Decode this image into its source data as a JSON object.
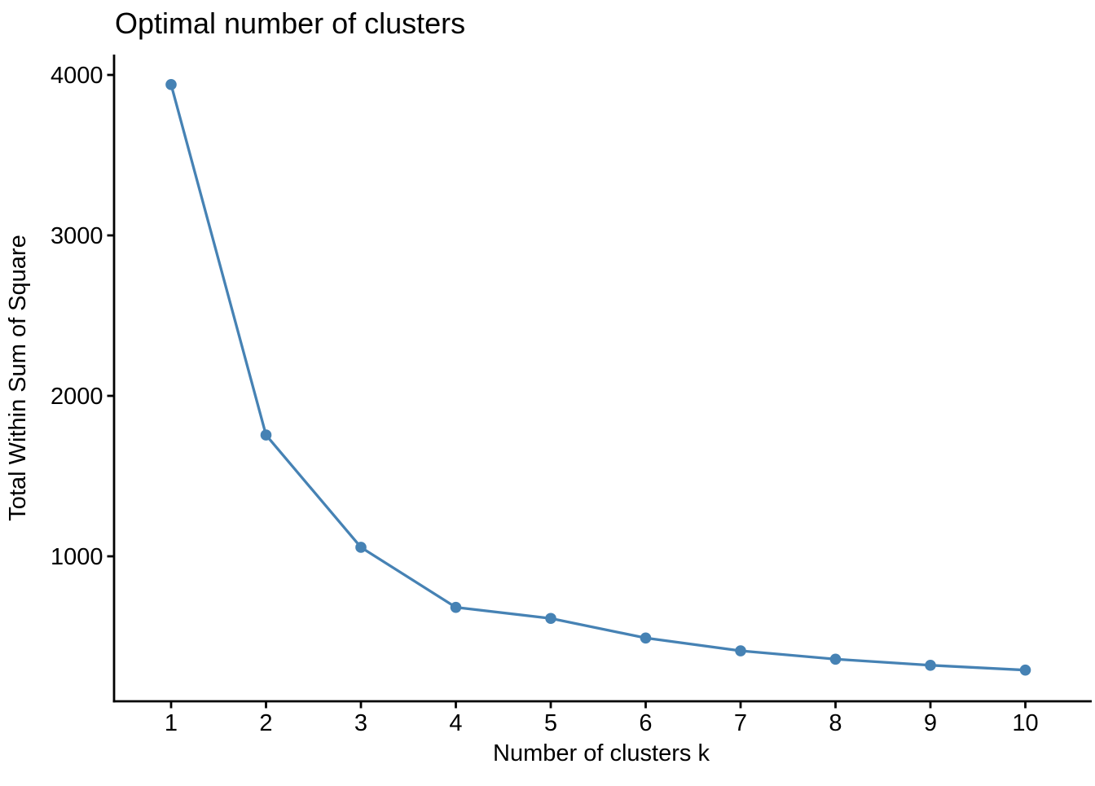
{
  "title": "Optimal number of clusters",
  "chart_data": {
    "type": "line",
    "title": "Optimal number of clusters",
    "xlabel": "Number of clusters k",
    "ylabel": "Total Within Sum of Square",
    "x": [
      1,
      2,
      3,
      4,
      5,
      6,
      7,
      8,
      9,
      10
    ],
    "values": [
      3940,
      1756,
      1056,
      682,
      613,
      491,
      411,
      359,
      321,
      291
    ],
    "series_name": "total_within_sum_of_square",
    "xticks": [
      "1",
      "2",
      "3",
      "4",
      "5",
      "6",
      "7",
      "8",
      "9",
      "10"
    ],
    "yticks": [
      "1000",
      "2000",
      "3000",
      "4000"
    ],
    "ytick_values": [
      1000,
      2000,
      3000,
      4000
    ],
    "xlim": [
      0.4,
      10.7
    ],
    "ylim": [
      100,
      4120
    ],
    "grid": false,
    "legend": false,
    "line_color": "#4682B4",
    "point_color": "#4682B4",
    "axis_color": "#000000",
    "text_color": "#000000",
    "background": "#FFFFFF"
  }
}
